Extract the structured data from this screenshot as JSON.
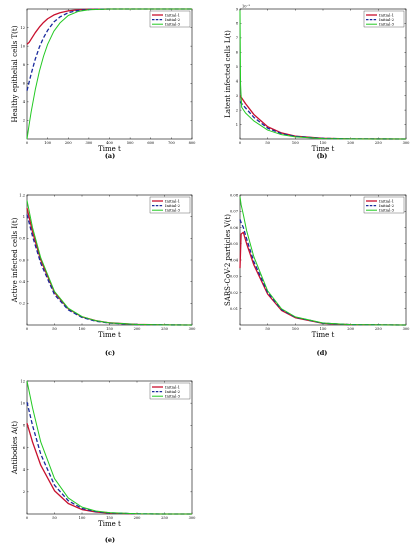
{
  "colors": {
    "initial_1": "#c8102e",
    "initial_2": "#1a2a9c",
    "initial_3": "#22c922"
  },
  "chart_data": [
    {
      "panel": "a",
      "caption": "(a)",
      "type": "line",
      "xlabel": "Time t",
      "ylabel": "Healthy epithelial cells T(t)",
      "xlim": [
        0,
        800
      ],
      "ylim": [
        0,
        14
      ],
      "xticks": [
        0,
        100,
        200,
        300,
        400,
        500,
        600,
        700,
        800
      ],
      "yticks": [
        2,
        4,
        6,
        8,
        10,
        12
      ],
      "yexponent": "",
      "legend": [
        "Initial-1",
        "Initial-2",
        "Initial-3"
      ],
      "series": [
        {
          "name": "Initial-1",
          "x": [
            0,
            10,
            20,
            40,
            60,
            80,
            100,
            130,
            160,
            200,
            250,
            300,
            400,
            500,
            600,
            800
          ],
          "y": [
            10.2,
            10.4,
            10.75,
            11.45,
            12.05,
            12.55,
            12.95,
            13.35,
            13.6,
            13.8,
            13.92,
            13.97,
            14,
            14,
            14,
            14
          ]
        },
        {
          "name": "Initial-2",
          "x": [
            0,
            10,
            20,
            40,
            60,
            80,
            100,
            130,
            160,
            200,
            250,
            300,
            400,
            500,
            600,
            800
          ],
          "y": [
            5.2,
            6.1,
            7.0,
            8.6,
            9.9,
            10.9,
            11.7,
            12.6,
            13.15,
            13.6,
            13.85,
            13.95,
            14,
            14,
            14,
            14
          ]
        },
        {
          "name": "Initial-3",
          "x": [
            0,
            10,
            20,
            40,
            60,
            80,
            100,
            130,
            160,
            200,
            250,
            300,
            400,
            500,
            600,
            800
          ],
          "y": [
            0,
            1.5,
            2.9,
            5.3,
            7.3,
            8.9,
            10.2,
            11.6,
            12.5,
            13.3,
            13.75,
            13.92,
            14,
            14,
            14,
            14
          ]
        }
      ]
    },
    {
      "panel": "b",
      "caption": "(b)",
      "type": "line",
      "xlabel": "Time t",
      "ylabel": "Latent infected cells L(t)",
      "xlim": [
        0,
        300
      ],
      "ylim": [
        0,
        9
      ],
      "xticks": [
        0,
        50,
        100,
        150,
        200,
        250,
        300
      ],
      "yticks": [
        1,
        2,
        3,
        4,
        5,
        6,
        7,
        8,
        9
      ],
      "yexponent": "10⁻³",
      "legend": [
        "Initial-1",
        "Initial-2",
        "Initial-3"
      ],
      "series": [
        {
          "name": "Initial-1",
          "x": [
            0,
            2,
            10,
            25,
            50,
            75,
            100,
            150,
            200,
            300
          ],
          "y": [
            3.0,
            2.9,
            2.45,
            1.7,
            0.85,
            0.42,
            0.2,
            0.05,
            0.01,
            0
          ]
        },
        {
          "name": "Initial-2",
          "x": [
            0,
            2,
            10,
            25,
            50,
            75,
            100,
            150,
            200,
            300
          ],
          "y": [
            2.6,
            2.5,
            2.15,
            1.5,
            0.75,
            0.37,
            0.18,
            0.04,
            0.01,
            0
          ]
        },
        {
          "name": "Initial-3",
          "x": [
            0,
            1,
            3,
            10,
            25,
            50,
            75,
            100,
            150,
            200,
            300
          ],
          "y": [
            8.9,
            3.8,
            2.2,
            1.8,
            1.25,
            0.62,
            0.3,
            0.15,
            0.03,
            0.01,
            0
          ]
        }
      ]
    },
    {
      "panel": "c",
      "caption": "(c)",
      "type": "line",
      "xlabel": "Time t",
      "ylabel": "Active infected cells I(t)",
      "xlim": [
        0,
        300
      ],
      "ylim": [
        0,
        1.2
      ],
      "xticks": [
        0,
        50,
        100,
        150,
        200,
        250,
        300
      ],
      "yticks": [
        0.2,
        0.4,
        0.6,
        0.8,
        1,
        1.2
      ],
      "yexponent": "",
      "legend": [
        "Initial-1",
        "Initial-2",
        "Initial-3"
      ],
      "series": [
        {
          "name": "Initial-1",
          "x": [
            0,
            10,
            25,
            50,
            75,
            100,
            125,
            150,
            200,
            250,
            300
          ],
          "y": [
            1.08,
            0.86,
            0.6,
            0.3,
            0.15,
            0.075,
            0.04,
            0.02,
            0.005,
            0.001,
            0
          ]
        },
        {
          "name": "Initial-2",
          "x": [
            0,
            10,
            25,
            50,
            75,
            100,
            125,
            150,
            200,
            250,
            300
          ],
          "y": [
            1.02,
            0.82,
            0.57,
            0.28,
            0.14,
            0.07,
            0.035,
            0.018,
            0.004,
            0.001,
            0
          ]
        },
        {
          "name": "Initial-3",
          "x": [
            0,
            10,
            25,
            50,
            75,
            100,
            125,
            150,
            200,
            250,
            300
          ],
          "y": [
            1.15,
            0.9,
            0.62,
            0.31,
            0.155,
            0.078,
            0.04,
            0.02,
            0.005,
            0.001,
            0
          ]
        }
      ]
    },
    {
      "panel": "d",
      "caption": "(d)",
      "type": "line",
      "xlabel": "Time t",
      "ylabel": "SARS-CoV-2 particles V(t)",
      "xlim": [
        0,
        300
      ],
      "ylim": [
        0,
        0.08
      ],
      "xticks": [
        0,
        50,
        100,
        150,
        200,
        250,
        300
      ],
      "yticks": [
        0.01,
        0.02,
        0.03,
        0.04,
        0.05,
        0.06,
        0.07,
        0.08
      ],
      "yexponent": "",
      "legend": [
        "Initial-1",
        "Initial-2",
        "Initial-3"
      ],
      "series": [
        {
          "name": "Initial-1",
          "x": [
            0,
            2,
            6,
            12,
            25,
            50,
            75,
            100,
            150,
            200,
            300
          ],
          "y": [
            0.035,
            0.056,
            0.057,
            0.05,
            0.037,
            0.019,
            0.009,
            0.0045,
            0.001,
            0.0002,
            0
          ]
        },
        {
          "name": "Initial-2",
          "x": [
            0,
            2,
            6,
            12,
            25,
            50,
            75,
            100,
            150,
            200,
            300
          ],
          "y": [
            0.065,
            0.063,
            0.06,
            0.053,
            0.039,
            0.02,
            0.0095,
            0.0048,
            0.0011,
            0.0002,
            0
          ]
        },
        {
          "name": "Initial-3",
          "x": [
            0,
            2,
            6,
            12,
            25,
            50,
            75,
            100,
            150,
            200,
            300
          ],
          "y": [
            0.079,
            0.074,
            0.068,
            0.058,
            0.042,
            0.021,
            0.01,
            0.005,
            0.0012,
            0.0002,
            0
          ]
        }
      ]
    },
    {
      "panel": "e",
      "caption": "(e)",
      "type": "line",
      "xlabel": "Time t",
      "ylabel": "Antibodies A(t)",
      "xlim": [
        0,
        300
      ],
      "ylim": [
        0,
        12
      ],
      "xticks": [
        0,
        50,
        100,
        150,
        200,
        250,
        300
      ],
      "yticks": [
        2,
        4,
        6,
        8,
        10,
        12
      ],
      "yexponent": "",
      "legend": [
        "Initial-1",
        "Initial-2",
        "Initial-3"
      ],
      "series": [
        {
          "name": "Initial-1",
          "x": [
            0,
            10,
            25,
            50,
            75,
            100,
            125,
            150,
            200,
            250,
            300
          ],
          "y": [
            8.2,
            6.5,
            4.4,
            2.1,
            0.95,
            0.4,
            0.18,
            0.08,
            0.01,
            0,
            0
          ]
        },
        {
          "name": "Initial-2",
          "x": [
            0,
            10,
            25,
            50,
            75,
            100,
            125,
            150,
            200,
            250,
            300
          ],
          "y": [
            10.1,
            8.0,
            5.4,
            2.6,
            1.2,
            0.5,
            0.22,
            0.1,
            0.015,
            0,
            0
          ]
        },
        {
          "name": "Initial-3",
          "x": [
            0,
            10,
            25,
            50,
            75,
            100,
            125,
            150,
            200,
            250,
            300
          ],
          "y": [
            12.0,
            9.6,
            6.5,
            3.2,
            1.45,
            0.62,
            0.27,
            0.12,
            0.02,
            0,
            0
          ]
        }
      ]
    }
  ]
}
